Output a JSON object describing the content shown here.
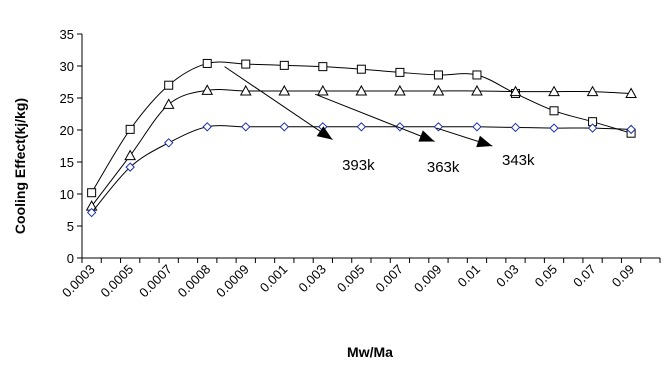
{
  "chart_data": {
    "type": "line",
    "categories": [
      "0.0003",
      "",
      "0.0005",
      "",
      "0.0007",
      "",
      "0.0008",
      "",
      "0.0009",
      "",
      "0.001",
      "",
      "0.003",
      "",
      "0.005",
      "",
      "0.007",
      "",
      "0.009",
      "",
      "0.01",
      "",
      "0.03",
      "",
      "0.05",
      "",
      "0.07",
      "",
      "0.09",
      ""
    ],
    "xlabel": "Mw/Ma",
    "ylabel": "Cooling Effect(kj/kg)",
    "ylim": [
      0,
      35
    ],
    "yticks": [
      0,
      5,
      10,
      15,
      20,
      25,
      30,
      35
    ],
    "grid": false,
    "series": [
      {
        "name": "393k",
        "marker": "square",
        "points": [
          [
            0.5,
            10.2
          ],
          [
            2.5,
            20.1
          ],
          [
            4.5,
            27
          ],
          [
            6.5,
            30.4
          ],
          [
            8.5,
            30.3
          ],
          [
            10.5,
            30.1
          ],
          [
            12.5,
            29.9
          ],
          [
            14.5,
            29.5
          ],
          [
            16.5,
            29
          ],
          [
            18.5,
            28.6
          ],
          [
            20.5,
            28.6
          ],
          [
            22.5,
            25.7
          ],
          [
            24.5,
            23
          ],
          [
            26.5,
            21.3
          ],
          [
            28.5,
            19.5
          ]
        ]
      },
      {
        "name": "363k",
        "marker": "triangle",
        "points": [
          [
            0.5,
            8.1
          ],
          [
            2.5,
            16
          ],
          [
            4.5,
            24
          ],
          [
            6.5,
            26.2
          ],
          [
            8.5,
            26.1
          ],
          [
            10.5,
            26.1
          ],
          [
            12.5,
            26.1
          ],
          [
            14.5,
            26.1
          ],
          [
            16.5,
            26.1
          ],
          [
            18.5,
            26.1
          ],
          [
            20.5,
            26.1
          ],
          [
            22.5,
            26
          ],
          [
            24.5,
            26
          ],
          [
            26.5,
            26
          ],
          [
            28.5,
            25.7
          ]
        ]
      },
      {
        "name": "343k",
        "marker": "diamond",
        "points": [
          [
            0.5,
            7.1
          ],
          [
            2.5,
            14.2
          ],
          [
            4.5,
            18
          ],
          [
            6.5,
            20.5
          ],
          [
            8.5,
            20.5
          ],
          [
            10.5,
            20.5
          ],
          [
            12.5,
            20.5
          ],
          [
            14.5,
            20.5
          ],
          [
            16.5,
            20.5
          ],
          [
            18.5,
            20.5
          ],
          [
            20.5,
            20.5
          ],
          [
            22.5,
            20.4
          ],
          [
            24.5,
            20.3
          ],
          [
            26.5,
            20.3
          ],
          [
            28.5,
            20.1
          ]
        ]
      }
    ],
    "annotations": [
      {
        "text": "393k",
        "from": [
          7.4,
          29.9
        ],
        "to": [
          13.0,
          18.5
        ],
        "label_at": [
          13.5,
          14.5
        ]
      },
      {
        "text": "363k",
        "from": [
          12.1,
          25.6
        ],
        "to": [
          18.3,
          18.2
        ],
        "label_at": [
          17.9,
          14.2
        ]
      },
      {
        "text": "343k",
        "from": [
          18.4,
          20.3
        ],
        "to": [
          21.3,
          17.5
        ],
        "label_at": [
          21.8,
          15.3
        ]
      }
    ]
  }
}
